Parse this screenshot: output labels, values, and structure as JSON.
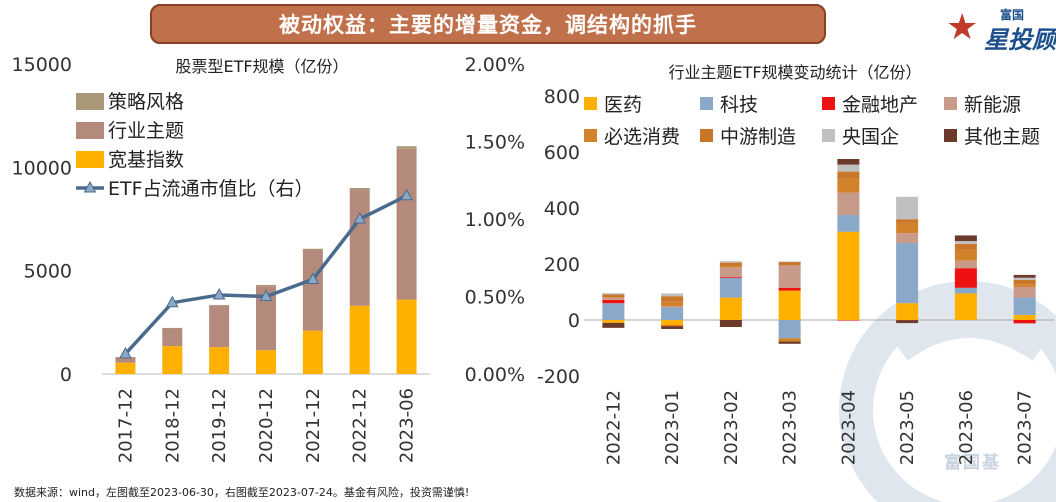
{
  "banner": {
    "title": "被动权益：主要的增量资金，调结构的抓手"
  },
  "logo": {
    "small": "富国",
    "big": "星投顾",
    "star_icon": "star-icon"
  },
  "watermark": {
    "text": "富国基"
  },
  "footnote": "数据来源：wind，左图截至2023-06-30，右图截至2023-07-24。基金有风险，投资需谨慎!",
  "colors": {
    "strategy": "#a89878",
    "industry": "#b48a7c",
    "broad": "#ffb000",
    "line": "#4a6b8c",
    "yiyao": "#ffb000",
    "keji": "#8aa8c8",
    "jinrong": "#ee1111",
    "xinnengyuan": "#c89a8a",
    "bixuan": "#d2822a",
    "zhongyou": "#c8762a",
    "yangguoqi": "#c0c0c0",
    "qita": "#6b3a2a"
  },
  "chart_data": [
    {
      "type": "bar",
      "title": "股票型ETF规模（亿份）",
      "categories": [
        "2017-12",
        "2018-12",
        "2019-12",
        "2020-12",
        "2021-12",
        "2022-12",
        "2023-06"
      ],
      "series": [
        {
          "name": "宽基指数",
          "values": [
            550,
            1350,
            1300,
            1150,
            2100,
            3300,
            3600
          ]
        },
        {
          "name": "行业主题",
          "values": [
            250,
            850,
            2000,
            3100,
            3900,
            5600,
            7300
          ]
        },
        {
          "name": "策略风格",
          "values": [
            20,
            30,
            40,
            60,
            60,
            100,
            120
          ]
        },
        {
          "name": "ETF占流通市值比（右）",
          "axis": "right",
          "values": [
            0.0013,
            0.0046,
            0.0051,
            0.005,
            0.0061,
            0.01,
            0.0115
          ]
        }
      ],
      "ylim": [
        0,
        15000
      ],
      "yticks": [
        "0",
        "5000",
        "10000",
        "15000"
      ],
      "y2lim": [
        0,
        0.02
      ],
      "y2ticks": [
        "0.00%",
        "0.50%",
        "1.00%",
        "1.50%",
        "2.00%"
      ],
      "legend": [
        "策略风格",
        "行业主题",
        "宽基指数",
        "ETF占流通市值比（右）"
      ]
    },
    {
      "type": "bar",
      "stacked": true,
      "title": "行业主题ETF规模变动统计（亿份）",
      "categories": [
        "2022-12",
        "2023-01",
        "2023-02",
        "2023-03",
        "2023-04",
        "2023-05",
        "2023-06",
        "2023-07"
      ],
      "series": [
        {
          "name": "医药",
          "values": [
            -10,
            -20,
            80,
            105,
            315,
            60,
            95,
            18
          ]
        },
        {
          "name": "科技",
          "values": [
            60,
            45,
            70,
            -65,
            60,
            215,
            20,
            62
          ]
        },
        {
          "name": "金融地产",
          "values": [
            12,
            -2,
            3,
            10,
            -2,
            -1,
            70,
            -12
          ]
        },
        {
          "name": "新能源",
          "values": [
            7,
            5,
            35,
            80,
            80,
            35,
            27,
            38
          ]
        },
        {
          "name": "必选消费",
          "values": [
            2,
            15,
            5,
            -12,
            50,
            38,
            40,
            10
          ]
        },
        {
          "name": "中游制造",
          "values": [
            10,
            20,
            12,
            12,
            25,
            12,
            20,
            15
          ]
        },
        {
          "name": "央国企",
          "values": [
            5,
            10,
            5,
            2,
            25,
            80,
            10,
            8
          ]
        },
        {
          "name": "其他主题",
          "values": [
            -18,
            -10,
            -25,
            -8,
            20,
            -10,
            20,
            10
          ]
        }
      ],
      "ylim": [
        -200,
        800
      ],
      "yticks": [
        "-200",
        "0",
        "200",
        "400",
        "600",
        "800"
      ],
      "legend": [
        "医药",
        "科技",
        "金融地产",
        "新能源",
        "必选消费",
        "中游制造",
        "央国企",
        "其他主题"
      ]
    }
  ]
}
